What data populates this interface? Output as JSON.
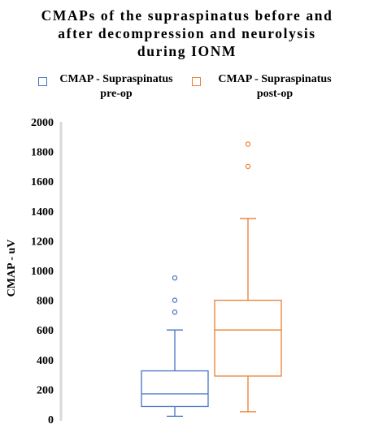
{
  "chart_data": {
    "type": "boxplot",
    "title_lines": [
      "CMAPs of the supraspinatus before and",
      "after decompression and neurolysis",
      "during IONM"
    ],
    "ylabel": "CMAP - uV",
    "ylim": [
      0,
      2000
    ],
    "y_ticks": [
      "0",
      "200",
      "400",
      "600",
      "800",
      "1000",
      "1200",
      "1400",
      "1600",
      "1800",
      "2000"
    ],
    "grid": false,
    "legend_position": "top",
    "series": [
      {
        "name_lines": [
          "CMAP - Supraspinatus",
          "pre-op"
        ],
        "color": "#4472c4",
        "whisker_low": 20,
        "q1": 85,
        "median": 170,
        "q3": 325,
        "whisker_high": 600,
        "outliers": [
          720,
          800,
          950
        ]
      },
      {
        "name_lines": [
          "CMAP - Supraspinatus",
          "post-op"
        ],
        "color": "#ed7d31",
        "whisker_low": 50,
        "q1": 290,
        "median": 600,
        "q3": 800,
        "whisker_high": 1350,
        "outliers": [
          1700,
          1850
        ]
      }
    ]
  }
}
